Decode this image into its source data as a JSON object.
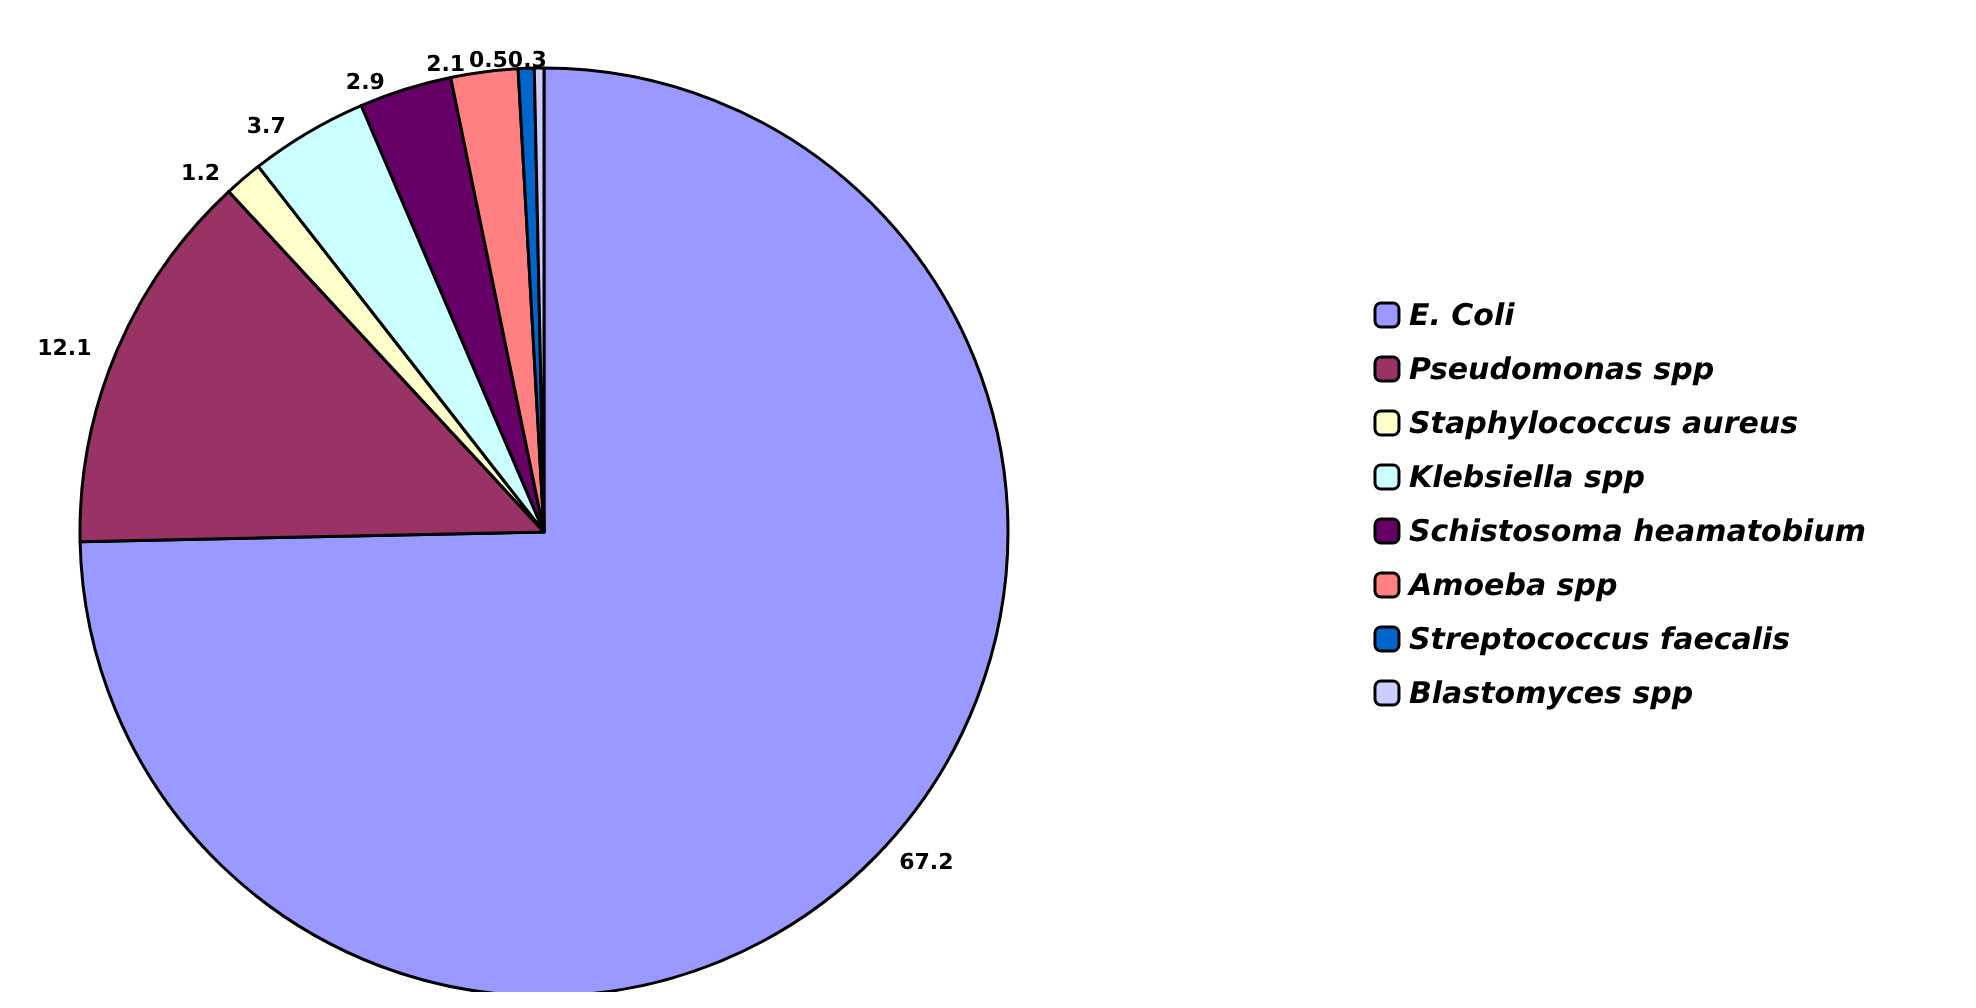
{
  "chart_data": {
    "type": "pie",
    "categories": [
      "E. Coli",
      "Pseudomonas spp",
      "Staphylococcus aureus",
      "Klebsiella spp",
      "Schistosoma heamatobium",
      "Amoeba spp",
      "Streptococcus faecalis",
      "Blastomyces spp"
    ],
    "values": [
      67.2,
      12.1,
      1.2,
      3.7,
      2.9,
      2.1,
      0.5,
      0.3
    ],
    "colors": [
      "#9999ff",
      "#993366",
      "#ffffcc",
      "#ccffff",
      "#660066",
      "#ff8080",
      "#0066cc",
      "#ccccff"
    ],
    "data_labels": true,
    "legend": "right"
  }
}
